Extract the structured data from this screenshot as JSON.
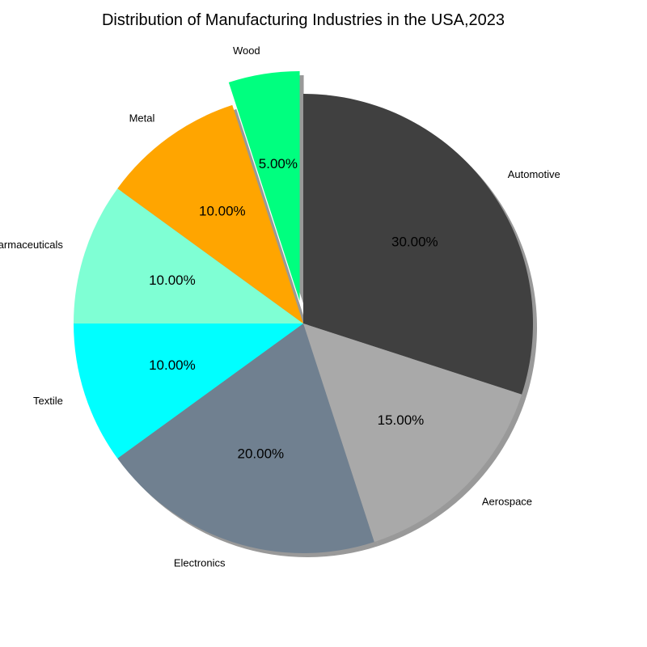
{
  "chart_data": {
    "type": "pie",
    "title": "Distribution of Manufacturing Industries in the USA,2023",
    "categories": [
      "Automotive",
      "Aerospace",
      "Electronics",
      "Textile",
      "Pharmaceuticals",
      "Metal",
      "Wood"
    ],
    "values": [
      30,
      15,
      20,
      10,
      10,
      10,
      5
    ],
    "value_labels": [
      "30.00%",
      "15.00%",
      "20.00%",
      "10.00%",
      "10.00%",
      "10.00%",
      "5.00%"
    ],
    "colors": [
      "#404040",
      "#a9a9a9",
      "#708090",
      "#00ffff",
      "#7fffd4",
      "#ffa500",
      "#00ff7f"
    ],
    "exploded": [
      "Wood"
    ],
    "shadow": true,
    "start_angle_deg": 90,
    "direction": "clockwise",
    "legend": "none"
  }
}
